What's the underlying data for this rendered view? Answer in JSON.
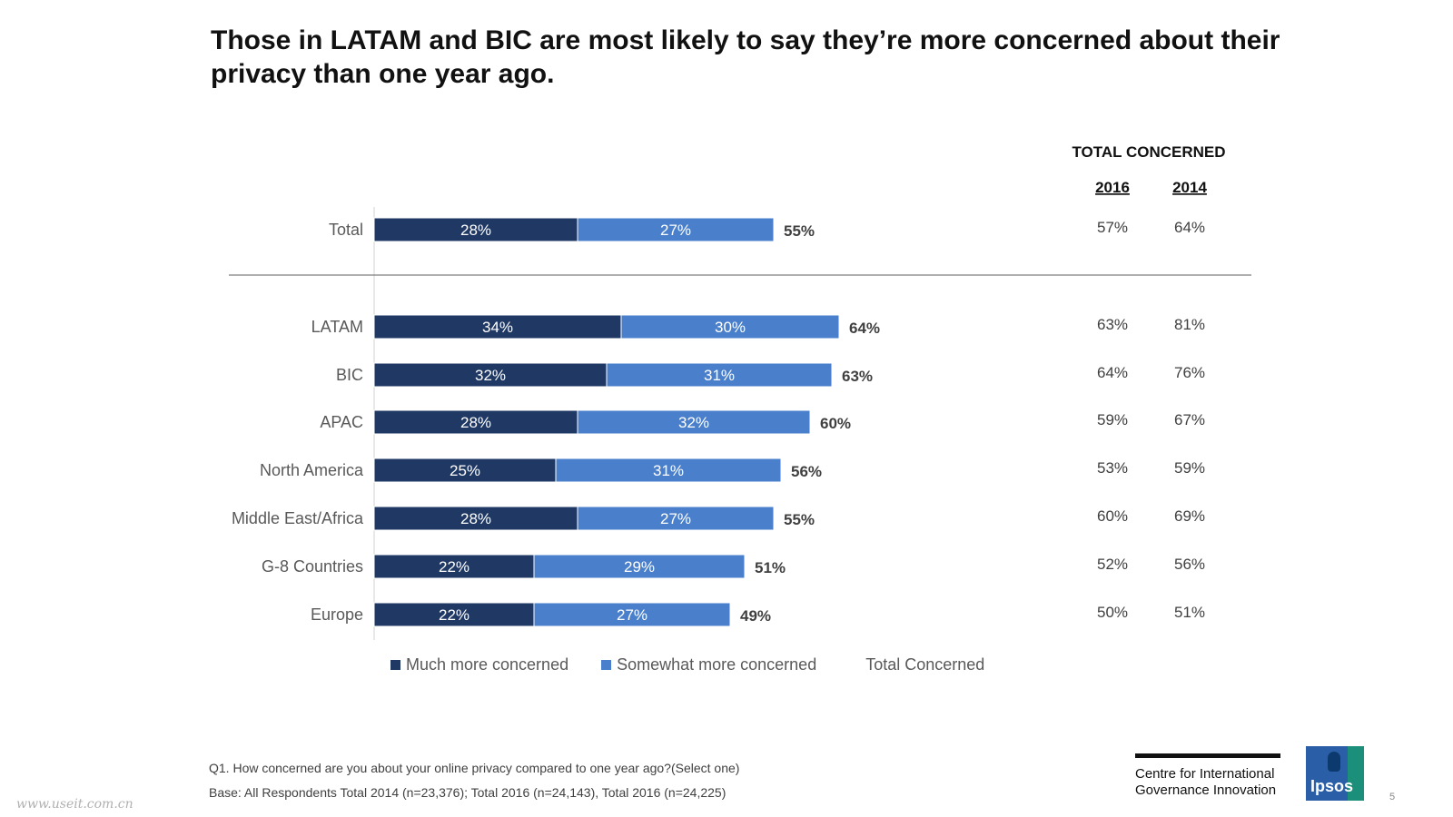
{
  "title": "Those in LATAM and BIC are most likely to say they’re more concerned about their privacy than one year ago.",
  "colors": {
    "much": "#1f3864",
    "somewhat": "#4a7fcc",
    "axis": "#d0d0d0",
    "divider": "#7f7f7f"
  },
  "chart_data": {
    "type": "bar",
    "orientation": "horizontal",
    "stacked": true,
    "categories": [
      "Total",
      "LATAM",
      "BIC",
      "APAC",
      "North America",
      "Middle East/Africa",
      "G-8 Countries",
      "Europe"
    ],
    "series": [
      {
        "name": "Much more concerned",
        "values": [
          28,
          34,
          32,
          28,
          25,
          28,
          22,
          22
        ],
        "labels": [
          "28%",
          "34%",
          "32%",
          "28%",
          "25%",
          "28%",
          "22%",
          "22%"
        ]
      },
      {
        "name": "Somewhat more concerned",
        "values": [
          27,
          30,
          31,
          32,
          31,
          27,
          29,
          27
        ],
        "labels": [
          "27%",
          "30%",
          "31%",
          "32%",
          "31%",
          "27%",
          "29%",
          "27%"
        ]
      }
    ],
    "totals": [
      55,
      64,
      63,
      60,
      56,
      55,
      51,
      49
    ],
    "total_labels": [
      "55%",
      "64%",
      "63%",
      "60%",
      "56%",
      "55%",
      "51%",
      "49%"
    ],
    "total_series_name": "Total Concerned",
    "side_table": {
      "heading": "TOTAL CONCERNED",
      "columns": [
        "2016",
        "2014"
      ],
      "rows": [
        [
          "57%",
          "64%"
        ],
        [
          "63%",
          "81%"
        ],
        [
          "64%",
          "76%"
        ],
        [
          "59%",
          "67%"
        ],
        [
          "53%",
          "59%"
        ],
        [
          "60%",
          "69%"
        ],
        [
          "52%",
          "56%"
        ],
        [
          "50%",
          "51%"
        ]
      ]
    }
  },
  "legend": {
    "much": "Much more concerned",
    "somewhat": "Somewhat more concerned",
    "total": "Total Concerned"
  },
  "footnotes": {
    "q1": "Q1. How concerned are you about your online privacy compared to one year ago?(Select one)",
    "base": "Base: All Respondents Total  2014 (n=23,376); Total 2016 (n=24,143), Total 2016 (n=24,225)"
  },
  "logo": {
    "line1": "Centre for International",
    "line2": "Governance Innovation",
    "ipsos": "Ipsos"
  },
  "page_number": "5",
  "watermark": "www.useit.com.cn"
}
